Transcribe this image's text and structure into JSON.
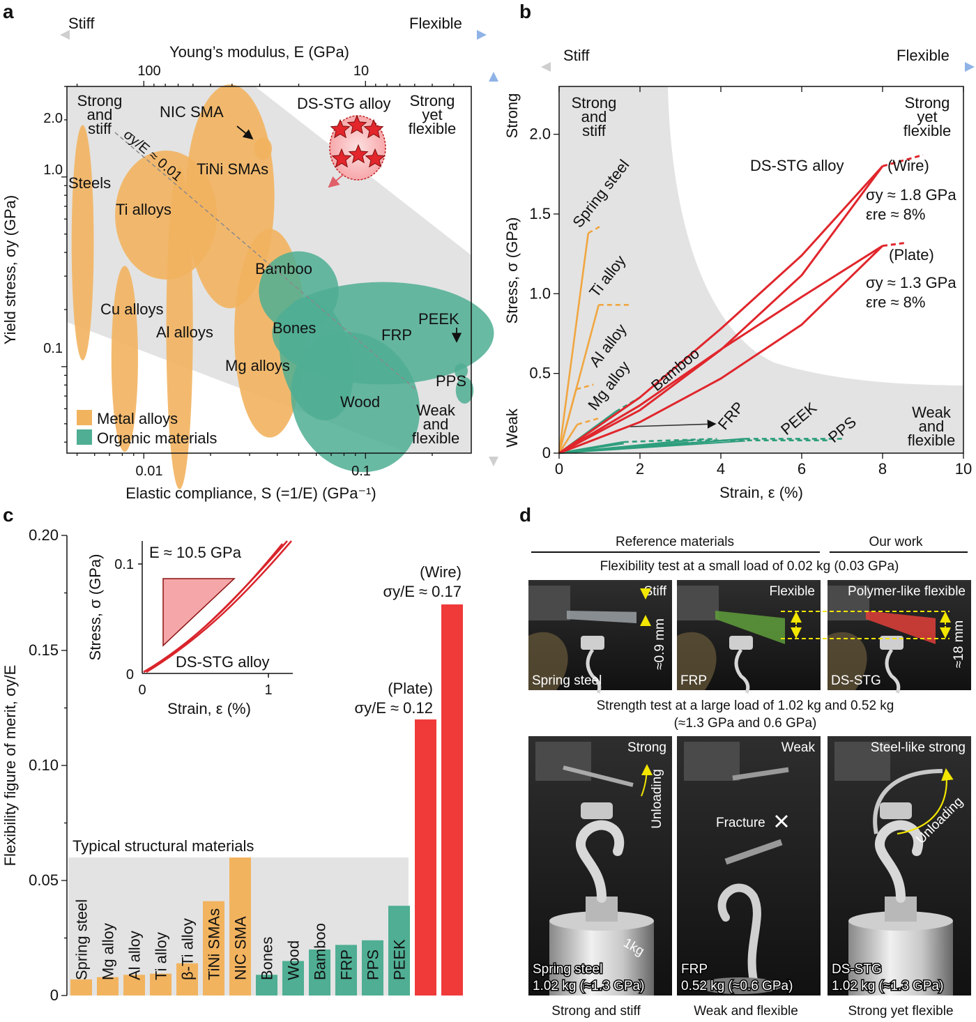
{
  "panels": {
    "a": "a",
    "b": "b",
    "c": "c",
    "d": "d"
  },
  "panel_a": {
    "arrow_left": "Stiff",
    "arrow_right": "Flexible",
    "top_axis_label": "Young’s modulus, E (GPa)",
    "top_ticks": [
      "100",
      "10"
    ],
    "xlabel": "Elastic compliance, S (=1/E) (GPa⁻¹)",
    "ylabel": "Yield stress, σy (GPa)",
    "x_ticks": [
      "0.01",
      "0.1"
    ],
    "y_ticks": [
      "2.0",
      "1.0",
      "0.1"
    ],
    "corner_labels": [
      "Strong and stiff",
      "Strong yet flexible",
      "Weak and flexible"
    ],
    "guide_line": "σy/E ≈ 0.01",
    "dsstg_label": "DS-STG alloy",
    "legend": [
      "Metal alloys",
      "Organic materials"
    ],
    "colors": {
      "metal": "#f2b35f",
      "organic": "#4fae93",
      "dsstg": "#d9242b",
      "band": "#e3e3e3"
    }
  },
  "panel_b": {
    "arrow_left": "Stiff",
    "arrow_right": "Flexible",
    "side_top": "Strong",
    "side_bottom": "Weak",
    "xlabel": "Strain, ε (%)",
    "ylabel": "Stress, σ (GPa)",
    "corner_labels": [
      "Strong and stiff",
      "Strong yet flexible",
      "Weak and flexible"
    ],
    "wire_label": "(Wire)",
    "wire_sigma": "σy ≈ 1.8 GPa",
    "wire_eps": "εre ≈ 8%",
    "plate_label": "(Plate)",
    "plate_sigma": "σy ≈ 1.3 GPa",
    "plate_eps": "εre ≈ 8%",
    "dsstg_label": "DS-STG alloy"
  },
  "panel_c": {
    "ylabel": "Flexibility figure of merit, σy/E",
    "band_label": "Typical structural materials",
    "wire_label": "(Wire)",
    "wire_value": "σy/E ≈ 0.17",
    "plate_label": "(Plate)",
    "plate_value": "σy/E ≈ 0.12",
    "inset": {
      "modulus": "E ≈ 10.5 GPa",
      "xlabel": "Strain, ε (%)",
      "ylabel": "Stress, σ (GPa)",
      "curve_label": "DS-STG alloy",
      "x_ticks": [
        "0",
        "1"
      ],
      "y_ticks": [
        "0",
        "0.1"
      ]
    }
  },
  "panel_d": {
    "ref_header": "Reference materials",
    "our_header": "Our work",
    "flex_test": "Flexibility test at a small load of 0.02 kg (0.03 GPa)",
    "strength_test_1": "Strength test at a large load of 1.02 kg and 0.52 kg",
    "strength_test_2": "(≈1.3 GPa and 0.6 GPa)",
    "top_photos": [
      {
        "corner": "Stiff",
        "bottom": "Spring steel",
        "measure": "≈0.9 mm"
      },
      {
        "corner": "Flexible",
        "bottom": "FRP",
        "measure": ""
      },
      {
        "corner": "Polymer-like flexible",
        "bottom": "DS-STG",
        "measure": "≈18 mm"
      }
    ],
    "bottom_photos": [
      {
        "corner": "Strong",
        "line1": "Spring steel",
        "line2": "1.02 kg (≈1.3 GPa)",
        "note": "Unloading",
        "weight": "1kg"
      },
      {
        "corner": "Weak",
        "line1": "FRP",
        "line2": "0.52 kg (≈0.6 GPa)",
        "note": "Fracture"
      },
      {
        "corner": "Steel-like strong",
        "line1": "DS-STG",
        "line2": "1.02 kg (≈1.3 GPa)",
        "note": "Unloading"
      }
    ],
    "captions": [
      "Strong and stiff",
      "Weak and flexible",
      "Strong yet flexible"
    ]
  },
  "chart_data": [
    {
      "panel": "a",
      "type": "scatter",
      "title": "",
      "xlabel": "Elastic compliance, S (=1/E) (GPa⁻¹)",
      "ylabel": "Yield stress, σy (GPa)",
      "x_scale": "log",
      "y_scale": "log",
      "xlim": [
        0.0045,
        0.3
      ],
      "ylim": [
        0.035,
        3.0
      ],
      "series": [
        {
          "name": "Metal alloys",
          "regions": [
            "Steels",
            "Ti alloys",
            "NIC SMA",
            "TiNi SMAs",
            "Cu alloys",
            "Al alloys",
            "Mg alloys"
          ]
        },
        {
          "name": "Organic materials",
          "regions": [
            "Bamboo",
            "Bones",
            "FRP",
            "PEEK",
            "PPS",
            "Wood"
          ]
        }
      ],
      "ellipses": [
        {
          "label": "Steels",
          "group": "metal",
          "cx": 0.0053,
          "cy": 0.45,
          "rx_decades": 0.05,
          "ry_decades": 0.62
        },
        {
          "label": "Cu alloys",
          "group": "metal",
          "cx": 0.0082,
          "cy": 0.11,
          "rx_decades": 0.06,
          "ry_decades": 0.49
        },
        {
          "label": "Al alloys",
          "group": "metal",
          "cx": 0.0145,
          "cy": 0.16,
          "rx_decades": 0.06,
          "ry_decades": 0.85
        },
        {
          "label": "Ti alloys",
          "group": "metal",
          "cx": 0.0126,
          "cy": 0.63,
          "rx_decades": 0.23,
          "ry_decades": 0.34
        },
        {
          "label": "TiNi SMAs",
          "group": "metal",
          "cx": 0.0245,
          "cy": 0.79,
          "rx_decades": 0.2,
          "ry_decades": 0.59
        },
        {
          "label": "NIC SMA",
          "group": "metal",
          "cx": 0.0345,
          "cy": 1.41,
          "rx_decades": 0.04,
          "ry_decades": 0.06
        },
        {
          "label": "Mg alloys",
          "group": "metal",
          "cx": 0.037,
          "cy": 0.15,
          "rx_decades": 0.16,
          "ry_decades": 0.55
        },
        {
          "label": "Bamboo",
          "group": "organic",
          "cx": 0.05,
          "cy": 0.25,
          "rx_decades": 0.18,
          "ry_decades": 0.21
        },
        {
          "label": "Bones",
          "group": "organic",
          "cx": 0.06,
          "cy": 0.11,
          "rx_decades": 0.16,
          "ry_decades": 0.33
        },
        {
          "label": "FRP",
          "group": "organic",
          "cx": 0.12,
          "cy": 0.15,
          "rx_decades": 0.5,
          "ry_decades": 0.27
        },
        {
          "label": "Wood",
          "group": "organic",
          "cx": 0.09,
          "cy": 0.065,
          "rx_decades": 0.28,
          "ry_decades": 0.38
        },
        {
          "label": "PEEK",
          "group": "organic",
          "cx": 0.27,
          "cy": 0.095,
          "rx_decades": 0.03,
          "ry_decades": 0.04
        },
        {
          "label": "PPS",
          "group": "organic",
          "cx": 0.28,
          "cy": 0.075,
          "rx_decades": 0.04,
          "ry_decades": 0.07
        }
      ],
      "points": [
        {
          "label": "DS-STG alloy",
          "x": 0.095,
          "y": 1.5
        }
      ],
      "guide": {
        "label": "σy/E ≈ 0.01",
        "ratio": 0.01
      }
    },
    {
      "panel": "b",
      "type": "line",
      "title": "",
      "xlabel": "Strain, ε (%)",
      "ylabel": "Stress, σ (GPa)",
      "xlim": [
        0,
        10
      ],
      "ylim": [
        0,
        2.3
      ],
      "x_ticks": [
        0,
        2,
        4,
        6,
        8,
        10
      ],
      "y_ticks": [
        0,
        0.5,
        1.0,
        1.5,
        2.0
      ],
      "series": [
        {
          "name": "Spring steel",
          "x": [
            0,
            0.72,
            1.0
          ],
          "y": [
            0,
            1.38,
            1.42
          ]
        },
        {
          "name": "Ti alloy",
          "x": [
            0,
            0.98,
            1.8
          ],
          "y": [
            0,
            0.93,
            0.93
          ]
        },
        {
          "name": "Al alloy",
          "x": [
            0,
            0.42,
            0.85
          ],
          "y": [
            0,
            0.4,
            0.43
          ]
        },
        {
          "name": "Mg alloy",
          "x": [
            0,
            0.45,
            1.0
          ],
          "y": [
            0,
            0.18,
            0.22
          ]
        },
        {
          "name": "Bamboo",
          "x": [
            0,
            1.4,
            2.0
          ],
          "y": [
            0,
            0.26,
            0.35
          ]
        },
        {
          "name": "FRP",
          "x": [
            0,
            1.6,
            3.9
          ],
          "y": [
            0,
            0.07,
            0.09
          ]
        },
        {
          "name": "PEEK",
          "x": [
            0,
            4.6,
            7.0
          ],
          "y": [
            0,
            0.09,
            0.09
          ]
        },
        {
          "name": "PPS",
          "x": [
            0,
            3.2,
            6.7
          ],
          "y": [
            0,
            0.08,
            0.08
          ]
        },
        {
          "name": "DS-STG alloy (Wire)",
          "x": [
            0,
            2,
            4,
            6,
            8.0,
            9.0
          ],
          "y": [
            0,
            0.35,
            0.78,
            1.24,
            1.8,
            1.87
          ]
        },
        {
          "name": "DS-STG alloy (Plate)",
          "x": [
            0,
            2,
            4,
            6,
            8.0,
            8.6
          ],
          "y": [
            0,
            0.3,
            0.65,
            0.98,
            1.3,
            1.32
          ]
        }
      ]
    },
    {
      "panel": "c",
      "type": "bar",
      "title": "",
      "ylabel": "Flexibility figure of merit, σy/E",
      "ylim": [
        0,
        0.2
      ],
      "y_ticks": [
        0,
        0.05,
        0.1,
        0.15,
        0.2
      ],
      "categories": [
        "Spring steel",
        "Mg alloy",
        "Al alloy",
        "Ti alloy",
        "β-Ti alloy",
        "TiNi SMAs",
        "NIC SMA",
        "Bones",
        "Wood",
        "Bamboo",
        "FRP",
        "PPS",
        "PEEK",
        "Plate",
        "Wire"
      ],
      "values": [
        0.007,
        0.008,
        0.009,
        0.0095,
        0.014,
        0.041,
        0.06,
        0.009,
        0.015,
        0.02,
        0.022,
        0.024,
        0.039,
        0.12,
        0.17
      ],
      "bar_colors": [
        "#f2b35f",
        "#f2b35f",
        "#f2b35f",
        "#f2b35f",
        "#f2b35f",
        "#f2b35f",
        "#f2b35f",
        "#4fae93",
        "#4fae93",
        "#4fae93",
        "#4fae93",
        "#4fae93",
        "#4fae93",
        "#f03a3a",
        "#f03a3a"
      ]
    }
  ]
}
